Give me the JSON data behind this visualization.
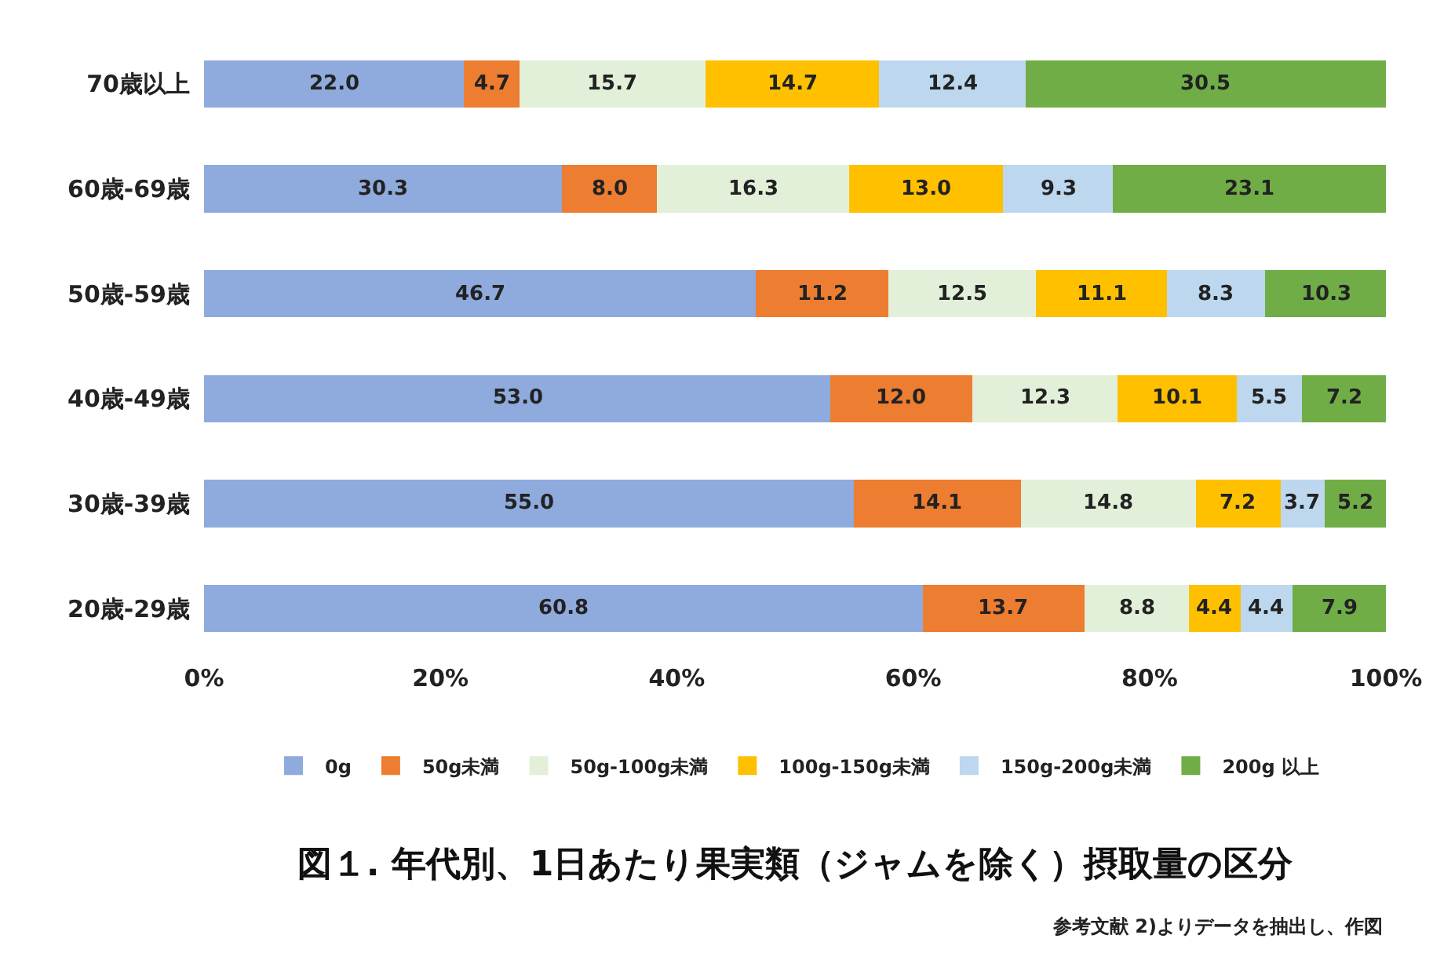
{
  "chart_data": {
    "type": "bar",
    "orientation": "horizontal",
    "stacked": true,
    "title": "図１. 年代別、1日あたり果実類（ジャムを除く）摂取量の区分",
    "annotations": [
      "参考文献 2)よりデータを抽出し、作図"
    ],
    "categories": [
      "70歳以上",
      "60歳-69歳",
      "50歳-59歳",
      "40歳-49歳",
      "30歳-39歳",
      "20歳-29歳"
    ],
    "series": [
      {
        "name": "0g",
        "color": "#8faadc",
        "values": [
          22.0,
          30.3,
          46.7,
          53.0,
          55.0,
          60.8
        ],
        "value_labels": [
          "22.0",
          "30.3",
          "46.7",
          "53.0",
          "55.0",
          "60.8"
        ]
      },
      {
        "name": "50g未満",
        "color": "#ed7d31",
        "values": [
          4.7,
          8.0,
          11.2,
          12.0,
          14.1,
          13.7
        ],
        "value_labels": [
          "4.7",
          "8.0",
          "11.2",
          "12.0",
          "14.1",
          "13.7"
        ]
      },
      {
        "name": "50g-100g未満",
        "color": "#e2f0d9",
        "values": [
          15.7,
          16.3,
          12.5,
          12.3,
          14.8,
          8.8
        ],
        "value_labels": [
          "15.7",
          "16.3",
          "12.5",
          "12.3",
          "14.8",
          "8.8"
        ]
      },
      {
        "name": "100g-150g未満",
        "color": "#ffc000",
        "values": [
          14.7,
          13.0,
          11.1,
          10.1,
          7.2,
          4.4
        ],
        "value_labels": [
          "14.7",
          "13.0",
          "11.1",
          "10.1",
          "7.2",
          "4.4"
        ]
      },
      {
        "name": "150g-200g未満",
        "color": "#bdd7ee",
        "values": [
          12.4,
          9.3,
          8.3,
          5.5,
          3.7,
          4.4
        ],
        "value_labels": [
          "12.4",
          "9.3",
          "8.3",
          "5.5",
          "3.7",
          "4.4"
        ]
      },
      {
        "name": "200g 以上",
        "color": "#70ad47",
        "values": [
          30.5,
          23.1,
          10.3,
          7.2,
          5.2,
          7.9
        ],
        "value_labels": [
          "30.5",
          "23.1",
          "10.3",
          "7.2",
          "5.2",
          "7.9"
        ]
      }
    ],
    "xlim": [
      0,
      100
    ],
    "xticks": [
      {
        "value": 0,
        "label": "0%"
      },
      {
        "value": 20,
        "label": "20%"
      },
      {
        "value": 40,
        "label": "40%"
      },
      {
        "value": 60,
        "label": "60%"
      },
      {
        "value": 80,
        "label": "80%"
      },
      {
        "value": 100,
        "label": "100%"
      }
    ],
    "grid": false,
    "legend": "bottom"
  }
}
